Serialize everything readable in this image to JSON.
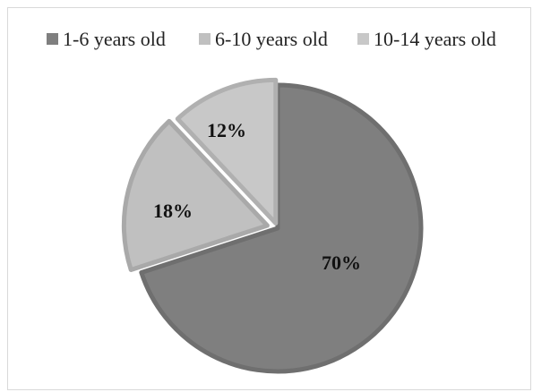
{
  "chart_data": {
    "type": "pie",
    "title": "",
    "legend_position": "top",
    "slices": [
      {
        "label": "1-6 years old",
        "value": 70,
        "value_label": "70%",
        "color": "#7f7f7f",
        "edge": "#6f6f6f"
      },
      {
        "label": "6-10 years old",
        "value": 18,
        "value_label": "18%",
        "color": "#c0c0c0",
        "edge": "#a9a9a9"
      },
      {
        "label": "10-14 years old",
        "value": 12,
        "value_label": "12%",
        "color": "#c8c8c8",
        "edge": "#b0b0b0"
      }
    ]
  }
}
